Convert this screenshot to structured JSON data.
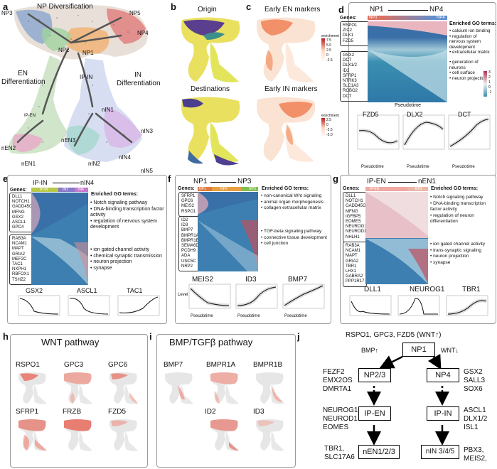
{
  "panel_a": {
    "letter": "a",
    "labels": [
      "NP Diversification",
      "EN Differentiation",
      "IN Differentiation",
      "IP-EN",
      "IP-IN"
    ],
    "nodes": [
      "NP3",
      "NP5",
      "NP4",
      "NP2",
      "NP1",
      "nEN2",
      "nEN1",
      "nEN3",
      "nIN1",
      "nIN2",
      "nIN3",
      "nIN4",
      "nIN5"
    ]
  },
  "panel_b": {
    "letter": "b",
    "titles": [
      "Origin",
      "Destinations"
    ]
  },
  "panel_c": {
    "letter": "c",
    "titles": [
      "Early EN markers",
      "Early IN markers"
    ],
    "legend_title": "enrichment",
    "legend1": [
      "7.5",
      "5.0",
      "2.5",
      "0",
      "-2.5"
    ],
    "legend2": [
      "2.5",
      "0",
      "-2.5",
      "-5.0"
    ]
  },
  "panel_d": {
    "letter": "d",
    "from": "NP1",
    "to": "NP4",
    "seg": [
      "NP1",
      "NP4"
    ],
    "genes_label": "Genes:",
    "go_label": "Enriched GO terms:",
    "genes_top": [
      "RSPO1",
      "ZIC2",
      "DLK1",
      "FZD5"
    ],
    "genes_bottom": [
      "GSX2",
      "DCT",
      "DLX1/2",
      "ID2",
      "SFRP1",
      "NTRK3",
      "SLC1A3",
      "ROBO2",
      "DCT"
    ],
    "terms_top": [
      "calcium ion binding",
      "regulation of nervous system development",
      "extracellular matrix"
    ],
    "terms_bottom": [
      "generation of neurons",
      "cell surface",
      "neuron projection"
    ],
    "scale": [
      "3",
      "2",
      "1",
      "0",
      "-1"
    ],
    "xlabel": "Pseudotime",
    "plots": [
      "FZD5",
      "DLX2",
      "DCT"
    ],
    "ticks": [
      "0",
      "1",
      "2",
      "3",
      "4"
    ]
  },
  "panel_e": {
    "letter": "e",
    "from": "IP-IN",
    "to": "nIN4",
    "seg": [
      "IP-IN",
      "IN1",
      "IN4"
    ],
    "genes_label": "Genes:",
    "go_label": "Enriched GO terms:",
    "genes_top": [
      "DLL1",
      "NOTCH1",
      "GADD45G",
      "MFNG",
      "GSX2",
      "ASCL1",
      "GPC4"
    ],
    "genes_bottom": [
      "RAB3A",
      "NCAM1",
      "MAPT",
      "GRIA2",
      "MEF2C",
      "TAC1",
      "NXPH1",
      "RBFOX1",
      "TSHZ2"
    ],
    "terms_top": [
      "Notch signaling pathway",
      "DNA-binding transcription factor activity",
      "regulation of nervous system development"
    ],
    "terms_bottom": [
      "ion gated channel activity",
      "chemical synaptic transmission",
      "neuron projection",
      "synapse"
    ],
    "plots": [
      "GSX2",
      "ASCL1",
      "TAC1"
    ],
    "yticks": [
      "1.00",
      "0.75",
      "0.50",
      "0.25",
      "0"
    ],
    "ticks": [
      "0",
      "2.5",
      "5",
      "7.5",
      "10",
      "12.5"
    ]
  },
  "panel_f": {
    "letter": "f",
    "from": "NP1",
    "to": "NP3",
    "seg": [
      "NP1",
      "NP2",
      "NP3"
    ],
    "genes_label": "Genes:",
    "go_label": "Enriched GO terms:",
    "genes_top": [
      "SFRP1",
      "GPC6",
      "MEIS2",
      "RSPO1"
    ],
    "genes_bottom": [
      "ID2",
      "ID3",
      "BMP7",
      "BMPR1A",
      "BMPR1B",
      "SEMA6D",
      "PCDH9",
      "ADA",
      "UNC5C",
      "NRP2"
    ],
    "terms_top": [
      "non-canonical Wnt signaling",
      "animal organ morphogenesis",
      "collagen extracellular matrix"
    ],
    "terms_bottom": [
      "TGF-beta signaling pathway",
      "connective tissue development",
      "cell junction"
    ],
    "plots": [
      "MEIS2",
      "ID3",
      "BMP7"
    ],
    "ylabel": "Level",
    "xlabel": "Pseudotime",
    "ticks": [
      "0",
      "2",
      "4",
      "6"
    ]
  },
  "panel_g": {
    "letter": "g",
    "from": "IP-EN",
    "to": "nEN1",
    "seg": [
      "IP-EN",
      "EN1"
    ],
    "genes_label": "Genes:",
    "go_label": "Enriched GO terms:",
    "genes_top": [
      "DLL1",
      "NOTCH1",
      "GADD45G",
      "MFNG",
      "IGFBP5",
      "EOMES",
      "NEUROG1",
      "NEUROD1",
      "NHLH1"
    ],
    "genes_bottom": [
      "RAB3A",
      "NCAM1",
      "MAPT",
      "GRIA2",
      "TBR1",
      "LHX1",
      "GABRA2",
      "PPP1R17"
    ],
    "terms_top": [
      "Notch signaling pathway",
      "DNA-binding transcription factor activity",
      "regulation of neuron differentiation"
    ],
    "terms_bottom": [
      "ion gated channel activity",
      "trans-synaptic signaling",
      "neuron projection",
      "synapse"
    ],
    "plots": [
      "DLL1",
      "NEUROG1",
      "TBR1"
    ],
    "yticks": [
      "1.00",
      "0.75",
      "0.50",
      "0.25",
      "0"
    ],
    "ticks": [
      "0",
      "2.5",
      "5",
      "7.5",
      "10"
    ]
  },
  "panel_h": {
    "letter": "h",
    "title": "WNT pathway",
    "genes": [
      "RSPO1",
      "GPC3",
      "GPC6",
      "SFRP1",
      "FRZB",
      "FZD5"
    ]
  },
  "panel_i": {
    "letter": "i",
    "title": "BMP/TGFβ pathway",
    "genes": [
      "BMP7",
      "BMPR1A",
      "BMPR1B",
      "ID2",
      "ID3"
    ]
  },
  "panel_j": {
    "letter": "j",
    "top": "RSPO1, GPC3, FZD5 (WNT↑)",
    "np1": "NP1",
    "np23": "NP2/3",
    "np4": "NP4",
    "ipen": "IP-EN",
    "ipin": "IP-IN",
    "nen": "nEN1/2/3",
    "nin": "nIN 3/4/5",
    "bmp": "BMP↑",
    "wnt": "WNT↓",
    "left1": [
      "FEZF2",
      "EMX2OS",
      "DMRTA1"
    ],
    "right1": [
      "GSX2",
      "SALL3",
      "SOX6"
    ],
    "left2": [
      "NEUROG1",
      "NEUROD1",
      "EOMES"
    ],
    "right2": [
      "ASCL1",
      "DLX1/2",
      "ISL1"
    ],
    "left3": [
      "TBR1,",
      "SLC17A6"
    ],
    "right3": [
      "PBX3,",
      "MEIS2,"
    ]
  }
}
